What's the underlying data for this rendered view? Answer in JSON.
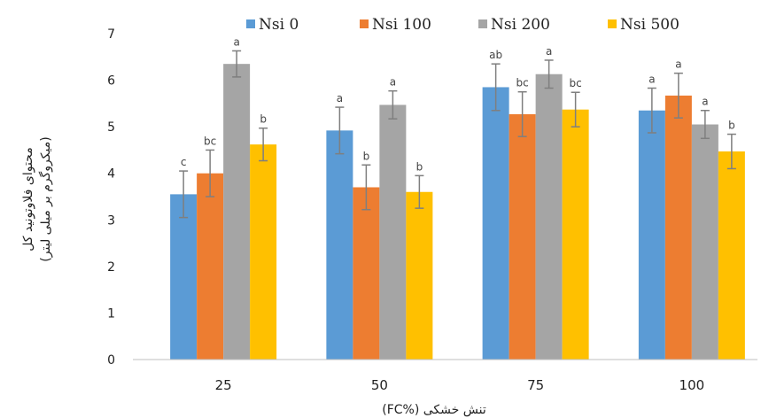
{
  "chart_data": {
    "type": "bar",
    "title": "",
    "xlabel": "(FC%) تنش خشکی",
    "ylabel_lines": [
      "محتوای فلاوتونید کل",
      "(میکروگرم بر میلی لیتر)"
    ],
    "ylim": [
      0,
      7
    ],
    "yticks": [
      0,
      1,
      2,
      3,
      4,
      5,
      6,
      7
    ],
    "categories": [
      "25",
      "50",
      "75",
      "100"
    ],
    "legend_position": "top",
    "grid": false,
    "series": [
      {
        "name": "Nsi 0",
        "color": "#5B9BD5",
        "values": [
          3.55,
          4.92,
          5.85,
          5.35
        ],
        "errors": [
          0.5,
          0.5,
          0.5,
          0.48
        ],
        "labels": [
          "c",
          "a",
          "ab",
          "a"
        ]
      },
      {
        "name": "Nsi 100",
        "color": "#ED7D31",
        "values": [
          4.0,
          3.7,
          5.27,
          5.67
        ],
        "errors": [
          0.5,
          0.48,
          0.48,
          0.48
        ],
        "labels": [
          "bc",
          "b",
          "bc",
          "a"
        ]
      },
      {
        "name": "Nsi 200",
        "color": "#A5A5A5",
        "values": [
          6.35,
          5.47,
          6.13,
          5.05
        ],
        "errors": [
          0.28,
          0.3,
          0.3,
          0.3
        ],
        "labels": [
          "a",
          "a",
          "a",
          "a"
        ]
      },
      {
        "name": "Nsi 500",
        "color": "#FFC000",
        "values": [
          4.62,
          3.6,
          5.37,
          4.47
        ],
        "errors": [
          0.35,
          0.35,
          0.37,
          0.37
        ],
        "labels": [
          "b",
          "b",
          "bc",
          "b"
        ]
      }
    ]
  }
}
